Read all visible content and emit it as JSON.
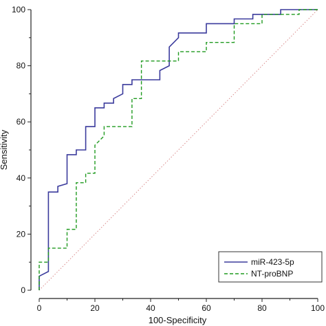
{
  "chart_data": {
    "type": "line",
    "title": "",
    "xlabel": "100-Specificity",
    "ylabel": "Sensitivity",
    "xlim": [
      0,
      100
    ],
    "ylim": [
      0,
      100
    ],
    "xticks": [
      0,
      20,
      40,
      60,
      80,
      100
    ],
    "yticks": [
      0,
      20,
      40,
      60,
      80,
      100
    ],
    "grid": false,
    "legend_position": "bottom-right",
    "reference_line": {
      "x": [
        0,
        100
      ],
      "y": [
        0,
        100
      ],
      "color": "#d98a8a",
      "style": "dotted"
    },
    "series": [
      {
        "name": "miR-423-5p",
        "color": "#3a3a9c",
        "style": "solid",
        "x": [
          0,
          0,
          3.3,
          3.3,
          6.7,
          6.7,
          10,
          10,
          13.3,
          13.3,
          16.7,
          16.7,
          20,
          20,
          23.3,
          23.3,
          26.7,
          26.7,
          30,
          30,
          33.3,
          33.3,
          36.7,
          36.7,
          43.3,
          43.3,
          46.7,
          46.7,
          50,
          50,
          60,
          60,
          70,
          70,
          76.7,
          76.7,
          80,
          80,
          86.7,
          86.7,
          100
        ],
        "y": [
          0,
          5,
          6.7,
          35,
          35,
          37,
          38,
          48.3,
          48.3,
          50,
          50,
          58.3,
          58.3,
          65,
          65,
          66.7,
          66.7,
          68.3,
          70,
          73.3,
          73.3,
          75,
          75,
          75,
          75,
          78.3,
          80,
          86.7,
          90,
          91.7,
          91.7,
          95,
          95,
          96.7,
          96.7,
          98.3,
          98.3,
          98.3,
          98.3,
          100,
          100
        ]
      },
      {
        "name": "NT-proBNP",
        "color": "#1f9a1f",
        "style": "dashed",
        "x": [
          0,
          0,
          3.3,
          3.3,
          10,
          10,
          13.3,
          13.3,
          16.7,
          16.7,
          20,
          20,
          23.3,
          23.3,
          33.3,
          33.3,
          36.7,
          36.7,
          50,
          50,
          60,
          60,
          70,
          70,
          80,
          80,
          93.3,
          93.3,
          100
        ],
        "y": [
          0,
          10,
          10,
          15,
          15,
          21.7,
          21.7,
          38.3,
          38.3,
          41.7,
          41.7,
          51.7,
          55,
          58.3,
          58.3,
          68.3,
          68.3,
          81.7,
          81.7,
          85,
          85,
          88.3,
          88.3,
          95,
          95,
          98.3,
          98.3,
          100,
          100
        ]
      }
    ]
  }
}
